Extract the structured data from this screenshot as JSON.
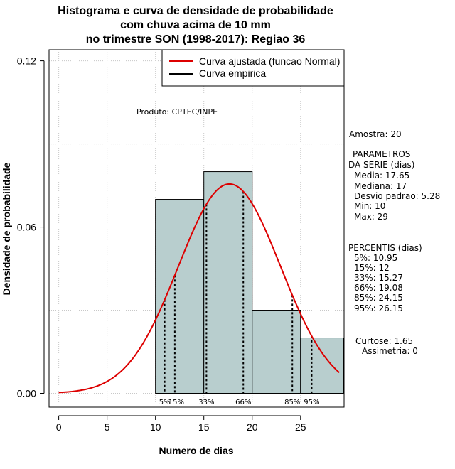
{
  "chart_data": {
    "type": "bar",
    "title_lines": [
      "Histograma e curva de densidade de probabilidade",
      "com chuva acima de 10 mm",
      "no trimestre SON (1998-2017): Regiao 36"
    ],
    "xlabel": "Numero de dias",
    "ylabel": "Densidade de probabilidade",
    "xlim": [
      -1,
      29.5
    ],
    "ylim": [
      -0.005,
      0.124
    ],
    "x_ticks": [
      0,
      5,
      10,
      15,
      20,
      25
    ],
    "x_tick_labels": [
      "0",
      "5",
      "10",
      "15",
      "20",
      "25"
    ],
    "y_ticks": [
      0.0,
      0.06,
      0.12
    ],
    "y_tick_labels": [
      "0.00",
      "0.06",
      "0.12"
    ],
    "grid_y_values": [
      0.03,
      0.09
    ],
    "grid_x_values": [
      0,
      5,
      10,
      15,
      20,
      25
    ],
    "bins": [
      {
        "x0": 10,
        "x1": 15,
        "density": 0.07
      },
      {
        "x0": 15,
        "x1": 20,
        "density": 0.08
      },
      {
        "x0": 20,
        "x1": 25,
        "density": 0.03
      },
      {
        "x0": 25,
        "x1": 30,
        "density": 0.02
      }
    ],
    "bar_fill": "#b8cece",
    "curve": {
      "type": "normal",
      "mean": 17.65,
      "sd": 5.28,
      "x_from": 0,
      "x_to": 29,
      "color": "#dd0000"
    },
    "percentile_lines": [
      {
        "label": "5%",
        "x": 10.95
      },
      {
        "label": "15%",
        "x": 12
      },
      {
        "label": "33%",
        "x": 15.27
      },
      {
        "label": "66%",
        "x": 19.08
      },
      {
        "label": "85%",
        "x": 24.15
      },
      {
        "label": "95%",
        "x": 26.15
      }
    ],
    "percentile_label_text": [
      "5%",
      "15%",
      "33%",
      "66%",
      "85%",
      "95%"
    ],
    "legend": [
      {
        "label": "Curva ajustada (funcao Normal)",
        "color": "#dd0000"
      },
      {
        "label": "Curva empirica",
        "color": "#000000"
      }
    ],
    "legend_position": "top-right",
    "source_label": "Produto: CPTEC/INPE"
  },
  "stats": {
    "amostra": "Amostra: 20",
    "parametros_title": "PARAMETROS",
    "parametros_subtitle": "DA SERIE (dias)",
    "media": "Media: 17.65",
    "mediana": "Mediana: 17",
    "desvio": "Desvio padrao: 5.28",
    "min": "Min: 10",
    "max": "Max: 29",
    "percentis_title": "PERCENTIS (dias)",
    "p5": "5%: 10.95",
    "p15": "15%: 12",
    "p33": "33%: 15.27",
    "p66": "66%: 19.08",
    "p85": "85%: 24.15",
    "p95": "95%: 26.15",
    "curtose": "Curtose: 1.65",
    "assimetria": "Assimetria: 0"
  }
}
